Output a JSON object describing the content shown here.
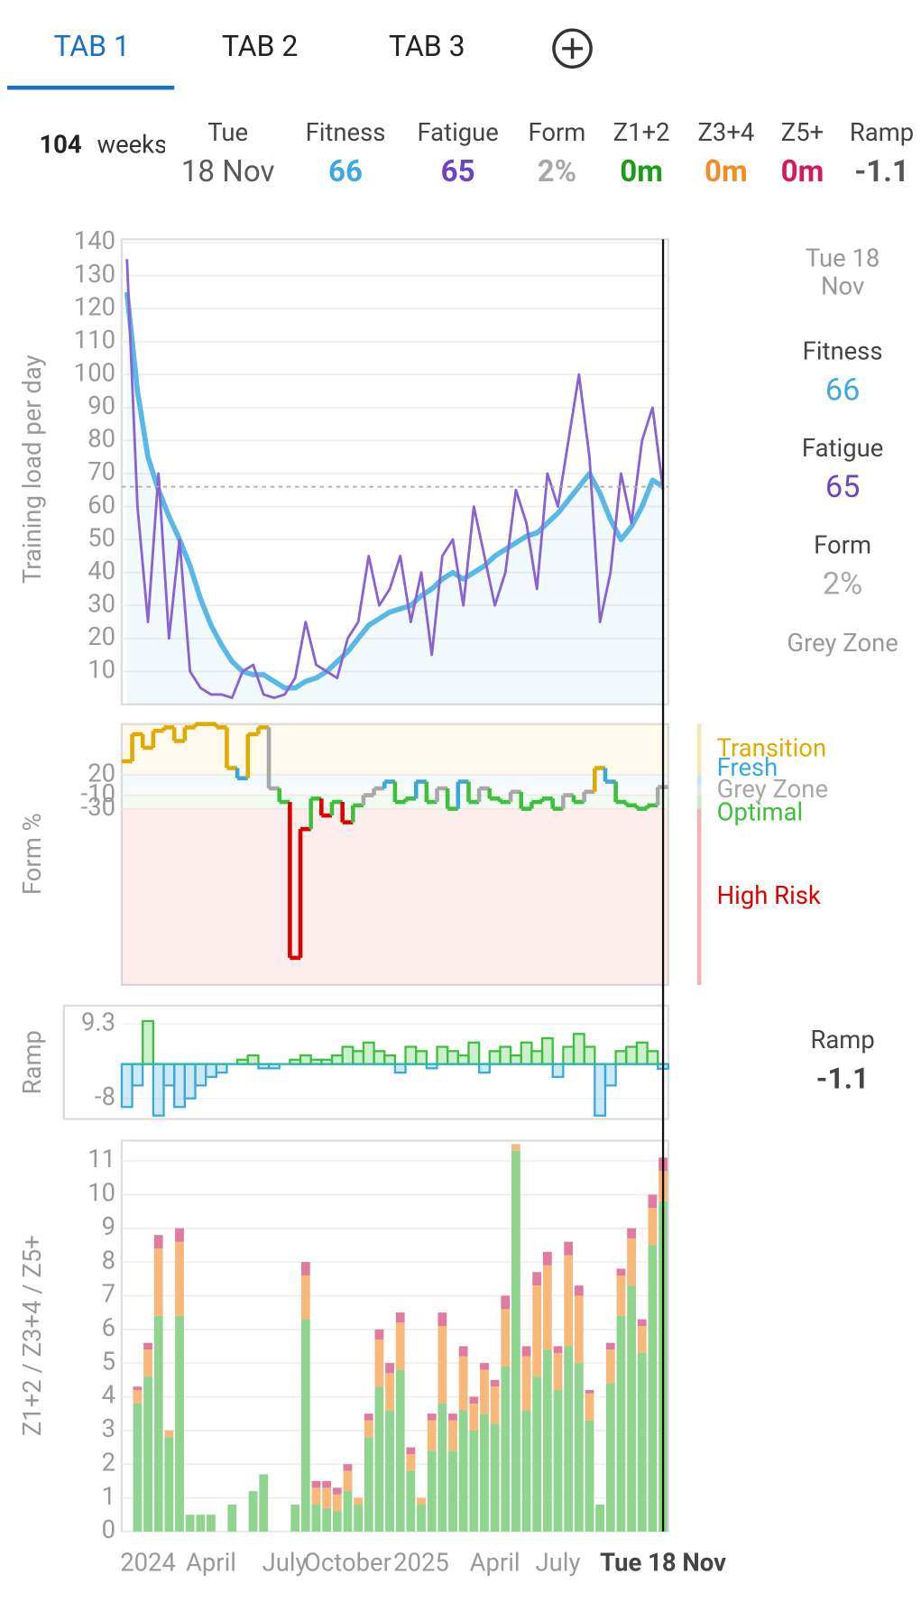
{
  "tabs": [
    "TAB 1",
    "TAB 2",
    "TAB 3"
  ],
  "summary": {
    "weeks": 104,
    "weeks_label": "weeks",
    "columns": [
      {
        "label": "Tue",
        "value": "18 Nov",
        "color": "#5a5a5a"
      },
      {
        "label": "Fitness",
        "value": 66,
        "color": "#3fa9df"
      },
      {
        "label": "Fatigue",
        "value": 65,
        "color": "#6f42c1"
      },
      {
        "label": "Form",
        "value": "2%",
        "color": "#a8a8a8"
      },
      {
        "label": "Z1+2",
        "value": "0m",
        "color": "#1a9e1a"
      },
      {
        "label": "Z3+4",
        "value": "0m",
        "color": "#f28c28"
      },
      {
        "label": "Z5+",
        "value": "0m",
        "color": "#d6195a"
      },
      {
        "label": "Ramp",
        "value": -1.1,
        "color": "#555555"
      }
    ]
  },
  "side_panel": {
    "date": [
      "Tue 18",
      "Nov"
    ],
    "items": [
      {
        "label": "Fitness",
        "value": 66,
        "color": "#3fa9df"
      },
      {
        "label": "Fatigue",
        "value": 65,
        "color": "#6f42c1"
      },
      {
        "label": "Form",
        "value": "2%",
        "color": "#a8a8a8"
      }
    ],
    "zone": "Grey Zone",
    "ramp_label": "Ramp",
    "ramp_value": -1.1
  },
  "chart_data": [
    {
      "type": "line",
      "y_label": "Training load per day",
      "ylim": [
        0,
        141
      ],
      "yticks": [
        10,
        20,
        30,
        40,
        50,
        60,
        70,
        80,
        90,
        100,
        110,
        120,
        130,
        140
      ],
      "grid": true,
      "series": [
        {
          "color": "#5ab8e6",
          "values": [
            125,
            95,
            75,
            65,
            57,
            50,
            42,
            32,
            24,
            18,
            13,
            10,
            9,
            9,
            7,
            5,
            5,
            7,
            8,
            10,
            13,
            16,
            20,
            24,
            26,
            28,
            29,
            30,
            33,
            35,
            38,
            40,
            38,
            40,
            42,
            45,
            47,
            49,
            51,
            52,
            55,
            58,
            62,
            66,
            70,
            64,
            56,
            50,
            54,
            60,
            68,
            66
          ]
        },
        {
          "color": "#8a63d2",
          "values": [
            135,
            60,
            25,
            70,
            20,
            50,
            10,
            5,
            3,
            3,
            2,
            10,
            12,
            3,
            2,
            3,
            8,
            25,
            12,
            10,
            8,
            20,
            25,
            45,
            30,
            35,
            45,
            25,
            40,
            15,
            45,
            50,
            30,
            60,
            45,
            30,
            40,
            65,
            55,
            35,
            70,
            60,
            80,
            100,
            75,
            25,
            40,
            70,
            55,
            80,
            90,
            65
          ]
        }
      ]
    },
    {
      "type": "step",
      "y_label": "Form %",
      "ylim": [
        -290,
        95
      ],
      "yticks": [
        20,
        -10,
        -30
      ],
      "zones": [
        {
          "name": "Transition",
          "color": "#e0aa00",
          "from": 20,
          "to": 95
        },
        {
          "name": "Fresh",
          "color": "#3aa8dc",
          "from": 5,
          "to": 20
        },
        {
          "name": "Grey Zone",
          "color": "#a8a8a8",
          "from": -10,
          "to": 5
        },
        {
          "name": "Optimal",
          "color": "#3cc13c",
          "from": -30,
          "to": -10
        },
        {
          "name": "High Risk",
          "color": "#dd0000",
          "from": -290,
          "to": -30
        }
      ],
      "values": [
        40,
        80,
        60,
        85,
        90,
        70,
        90,
        95,
        95,
        90,
        30,
        15,
        80,
        90,
        0,
        -20,
        -250,
        -60,
        -15,
        -40,
        -20,
        -50,
        -25,
        -10,
        0,
        10,
        -20,
        -15,
        10,
        -20,
        0,
        -30,
        10,
        -20,
        0,
        -15,
        -20,
        -5,
        -30,
        -20,
        -15,
        -30,
        -10,
        -20,
        -5,
        30,
        10,
        -20,
        -25,
        -30,
        -25,
        2
      ]
    },
    {
      "type": "bar",
      "y_label": "Ramp",
      "ylim": [
        -12.8,
        13.6
      ],
      "yticks": [
        9.3,
        -8
      ],
      "color_up": "#3cc13c",
      "color_down": "#3aa8dc",
      "baseline_color": "#2bb5b5",
      "values": [
        -10,
        -5,
        10,
        -12,
        -5,
        -10,
        -8,
        -5,
        -3,
        -2,
        0,
        1,
        2,
        -1,
        -1,
        0,
        1,
        2,
        1,
        1,
        2,
        4,
        3,
        5,
        3,
        2,
        -2,
        4,
        3,
        -1,
        4,
        3,
        2,
        5,
        -2,
        3,
        4,
        2,
        5,
        3,
        6,
        -3,
        4,
        7,
        4,
        -12,
        -5,
        3,
        4,
        5,
        3,
        -1.1
      ]
    },
    {
      "type": "stacked_bar",
      "y_label": "Z1+2 / Z3+4 / Z5+",
      "ylim": [
        0,
        11.6
      ],
      "yticks": [
        0,
        1,
        2,
        3,
        4,
        5,
        6,
        7,
        8,
        9,
        10,
        11
      ],
      "grid": true,
      "categories": [
        null,
        null,
        "2024",
        null,
        null,
        null,
        null,
        null,
        "April",
        null,
        null,
        null,
        null,
        null,
        null,
        "July",
        null,
        null,
        null,
        null,
        null,
        "October",
        null,
        null,
        null,
        null,
        null,
        null,
        "2025",
        null,
        null,
        null,
        null,
        null,
        null,
        "April",
        null,
        null,
        null,
        null,
        null,
        "July",
        null,
        null,
        null,
        null,
        null,
        null,
        null,
        null,
        null,
        "Tue 18 Nov"
      ],
      "series": [
        {
          "color": "#8fd48f",
          "values": [
            0,
            3.8,
            4.6,
            6.4,
            2.8,
            6.4,
            0.5,
            0.5,
            0.5,
            0,
            0.8,
            0,
            1.2,
            1.7,
            0,
            0,
            0.8,
            6.3,
            0.8,
            0.7,
            0.6,
            1.2,
            0.8,
            2.8,
            4.3,
            3.6,
            4.8,
            1.8,
            0.8,
            2.4,
            3.8,
            2.4,
            3.6,
            3,
            3.5,
            3.2,
            4.9,
            11.3,
            3.6,
            4.6,
            5.4,
            4.2,
            5.5,
            5,
            3.3,
            0.8,
            4.4,
            6.4,
            7.3,
            5.3,
            8.5,
            9.8
          ]
        },
        {
          "color": "#f7b87a",
          "values": [
            0,
            0.4,
            0.8,
            2,
            0.2,
            2.2,
            0,
            0,
            0,
            0,
            0,
            0,
            0,
            0,
            0,
            0,
            0,
            1.3,
            0.5,
            0.6,
            0.5,
            0.6,
            0.2,
            0.5,
            1.4,
            1.1,
            1.4,
            0.5,
            0.2,
            0.9,
            2.3,
            0.9,
            1.6,
            0.8,
            1.3,
            1.1,
            1.7,
            0.2,
            1.6,
            2.7,
            2.5,
            1.1,
            2.7,
            2,
            0.8,
            0,
            1,
            1.2,
            1.4,
            0.8,
            1.1,
            0.9
          ]
        },
        {
          "color": "#e07aa0",
          "values": [
            0,
            0.1,
            0.2,
            0.4,
            0,
            0.4,
            0,
            0,
            0,
            0,
            0,
            0,
            0,
            0,
            0,
            0,
            0,
            0.4,
            0.2,
            0.2,
            0.2,
            0.2,
            0,
            0.2,
            0.3,
            0.3,
            0.3,
            0.2,
            0,
            0.2,
            0.4,
            0.2,
            0.3,
            0.2,
            0.2,
            0.2,
            0.4,
            0,
            0.3,
            0.4,
            0.4,
            0.2,
            0.4,
            0.3,
            0.1,
            0,
            0.2,
            0.2,
            0.3,
            0.2,
            0.4,
            0.4
          ]
        }
      ]
    }
  ]
}
